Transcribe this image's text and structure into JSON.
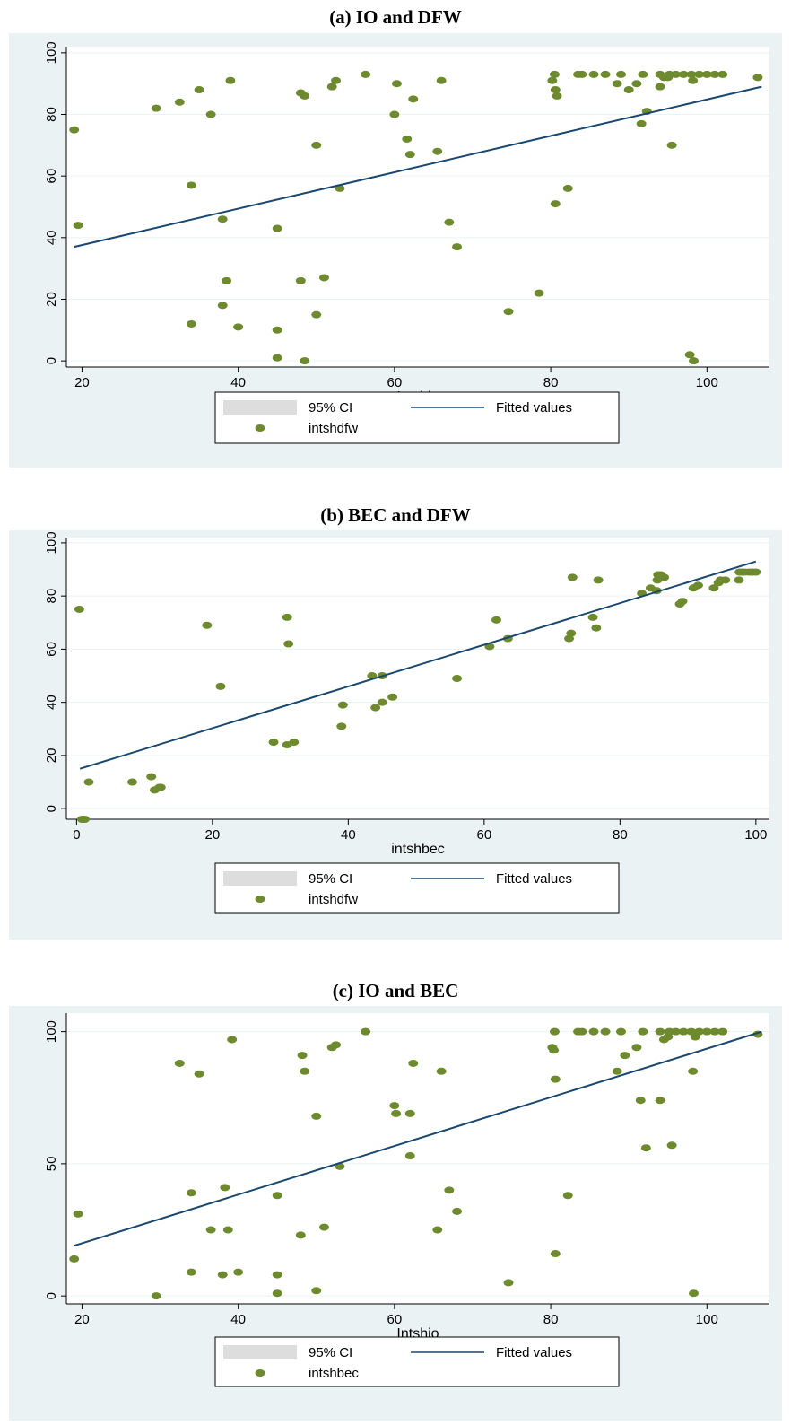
{
  "colors": {
    "outer_bg": "#eaf2f3",
    "plot_bg": "#ffffff",
    "grid": "#eaf2f3",
    "fit_line": "#1a476f",
    "marker": "#6e8a2e",
    "ci_fill": "#dddddd"
  },
  "chart_data": [
    {
      "type": "scatter",
      "title": "(a) IO and DFW",
      "xlabel": "Intshio",
      "ylabel": "",
      "xlim": [
        18,
        108
      ],
      "ylim": [
        -2,
        102
      ],
      "xticks": [
        20,
        40,
        60,
        80,
        100
      ],
      "yticks": [
        0,
        20,
        40,
        60,
        80,
        100
      ],
      "grid": true,
      "legend": {
        "placement": "bottom",
        "entries": [
          "95% CI",
          "Fitted values",
          "intshdfw"
        ]
      },
      "fit": {
        "x": [
          19,
          107
        ],
        "y": [
          37,
          89
        ]
      },
      "series": [
        {
          "name": "intshdfw",
          "points": [
            [
              19,
              75
            ],
            [
              19.5,
              44
            ],
            [
              29.5,
              82
            ],
            [
              32.5,
              84
            ],
            [
              35,
              88
            ],
            [
              36.5,
              80
            ],
            [
              34,
              57
            ],
            [
              34,
              12
            ],
            [
              38,
              46
            ],
            [
              38.5,
              26
            ],
            [
              38,
              18
            ],
            [
              39,
              91
            ],
            [
              40,
              11
            ],
            [
              45,
              43
            ],
            [
              45,
              10
            ],
            [
              45,
              1
            ],
            [
              48,
              87
            ],
            [
              48.5,
              86
            ],
            [
              48,
              26
            ],
            [
              48.5,
              0
            ],
            [
              50,
              70
            ],
            [
              50,
              15
            ],
            [
              51,
              27
            ],
            [
              52,
              89
            ],
            [
              52.5,
              91
            ],
            [
              53,
              56
            ],
            [
              56.3,
              93
            ],
            [
              60,
              80
            ],
            [
              60.3,
              90
            ],
            [
              61.6,
              72
            ],
            [
              62,
              67
            ],
            [
              62.4,
              85
            ],
            [
              65.5,
              68
            ],
            [
              66,
              91
            ],
            [
              67,
              45
            ],
            [
              68,
              37
            ],
            [
              74.6,
              16
            ],
            [
              78.5,
              22
            ],
            [
              80.2,
              91
            ],
            [
              80.5,
              93
            ],
            [
              80.6,
              88
            ],
            [
              80.8,
              86
            ],
            [
              80.6,
              51
            ],
            [
              82.2,
              56
            ],
            [
              83.5,
              93
            ],
            [
              84,
              93
            ],
            [
              85.5,
              93
            ],
            [
              87,
              93
            ],
            [
              88.5,
              90
            ],
            [
              89,
              93
            ],
            [
              90,
              88
            ],
            [
              91,
              90
            ],
            [
              91.6,
              77
            ],
            [
              91.8,
              93
            ],
            [
              92.3,
              81
            ],
            [
              94,
              89
            ],
            [
              94,
              93
            ],
            [
              94.5,
              92
            ],
            [
              95,
              92
            ],
            [
              95.2,
              93
            ],
            [
              95.5,
              70
            ],
            [
              96,
              93
            ],
            [
              97,
              93
            ],
            [
              97.8,
              2
            ],
            [
              98,
              93
            ],
            [
              98.2,
              91
            ],
            [
              98.3,
              0
            ],
            [
              99,
              93
            ],
            [
              100,
              93
            ],
            [
              101,
              93
            ],
            [
              102,
              93
            ],
            [
              106.5,
              92
            ]
          ]
        }
      ]
    },
    {
      "type": "scatter",
      "title": "(b) BEC and DFW",
      "xlabel": "intshbec",
      "ylabel": "",
      "xlim": [
        -1.5,
        102
      ],
      "ylim": [
        -4,
        102
      ],
      "xticks": [
        0,
        20,
        40,
        60,
        80,
        100
      ],
      "yticks": [
        0,
        20,
        40,
        60,
        80,
        100
      ],
      "grid": true,
      "legend": {
        "placement": "bottom",
        "entries": [
          "95% CI",
          "Fitted values",
          "intshdfw"
        ]
      },
      "fit": {
        "x": [
          0.5,
          100
        ],
        "y": [
          15,
          93
        ]
      },
      "series": [
        {
          "name": "intshdfw",
          "points": [
            [
              0.4,
              75
            ],
            [
              0.8,
              -4
            ],
            [
              1.2,
              -4
            ],
            [
              1.8,
              10
            ],
            [
              8.2,
              10
            ],
            [
              11,
              12
            ],
            [
              11.5,
              7
            ],
            [
              12.2,
              8
            ],
            [
              12.4,
              8
            ],
            [
              19.2,
              69
            ],
            [
              21.2,
              46
            ],
            [
              29,
              25
            ],
            [
              31,
              24
            ],
            [
              31,
              72
            ],
            [
              31.2,
              62
            ],
            [
              32,
              25
            ],
            [
              39,
              31
            ],
            [
              39.2,
              39
            ],
            [
              43.5,
              50
            ],
            [
              44,
              38
            ],
            [
              45,
              40
            ],
            [
              45,
              50
            ],
            [
              46.5,
              42
            ],
            [
              56,
              49
            ],
            [
              60.8,
              61
            ],
            [
              61.8,
              71
            ],
            [
              63.5,
              64
            ],
            [
              72.5,
              64
            ],
            [
              72.8,
              66
            ],
            [
              73,
              87
            ],
            [
              76,
              72
            ],
            [
              76.5,
              68
            ],
            [
              76.8,
              86
            ],
            [
              83.2,
              81
            ],
            [
              84.5,
              83
            ],
            [
              85.4,
              82
            ],
            [
              85.5,
              86
            ],
            [
              85.6,
              88
            ],
            [
              86,
              88
            ],
            [
              86.5,
              87
            ],
            [
              88.8,
              77
            ],
            [
              89.2,
              78
            ],
            [
              90.8,
              83
            ],
            [
              91.5,
              84
            ],
            [
              93.8,
              83
            ],
            [
              94.5,
              85
            ],
            [
              94.8,
              86
            ],
            [
              95.5,
              86
            ],
            [
              97.5,
              86
            ],
            [
              97.6,
              89
            ],
            [
              98,
              89
            ],
            [
              98.3,
              89
            ],
            [
              99,
              89
            ],
            [
              99.5,
              89
            ],
            [
              100,
              89
            ]
          ]
        }
      ]
    },
    {
      "type": "scatter",
      "title": "(c) IO and BEC",
      "xlabel": "Intshio",
      "ylabel": "",
      "xlim": [
        18,
        108
      ],
      "ylim": [
        -3,
        107
      ],
      "xticks": [
        20,
        40,
        60,
        80,
        100
      ],
      "yticks": [
        0,
        50,
        100
      ],
      "grid": true,
      "legend": {
        "placement": "bottom",
        "entries": [
          "95% CI",
          "Fitted values",
          "intshbec"
        ]
      },
      "fit": {
        "x": [
          19,
          107
        ],
        "y": [
          19,
          100
        ]
      },
      "series": [
        {
          "name": "intshbec",
          "points": [
            [
              19,
              14
            ],
            [
              19.5,
              31
            ],
            [
              29.5,
              0
            ],
            [
              32.5,
              88
            ],
            [
              34,
              9
            ],
            [
              34,
              39
            ],
            [
              35,
              84
            ],
            [
              36.5,
              25
            ],
            [
              38,
              8
            ],
            [
              38.3,
              41
            ],
            [
              38.7,
              25
            ],
            [
              39.2,
              97
            ],
            [
              40,
              9
            ],
            [
              45,
              38
            ],
            [
              45,
              8
            ],
            [
              45,
              1
            ],
            [
              48,
              23
            ],
            [
              48.2,
              91
            ],
            [
              48.5,
              85
            ],
            [
              50,
              68
            ],
            [
              50,
              2
            ],
            [
              51,
              26
            ],
            [
              52,
              94
            ],
            [
              52.5,
              95
            ],
            [
              53,
              49
            ],
            [
              56.3,
              100
            ],
            [
              60,
              72
            ],
            [
              60.2,
              69
            ],
            [
              62,
              69
            ],
            [
              62,
              53
            ],
            [
              62.4,
              88
            ],
            [
              65.5,
              25
            ],
            [
              66,
              85
            ],
            [
              67,
              40
            ],
            [
              68,
              32
            ],
            [
              74.6,
              5
            ],
            [
              80.2,
              94
            ],
            [
              80.4,
              93
            ],
            [
              80.5,
              100
            ],
            [
              80.6,
              82
            ],
            [
              80.6,
              16
            ],
            [
              82.2,
              38
            ],
            [
              83.5,
              100
            ],
            [
              84,
              100
            ],
            [
              85.5,
              100
            ],
            [
              87,
              100
            ],
            [
              88.5,
              85
            ],
            [
              89,
              100
            ],
            [
              89.5,
              91
            ],
            [
              91,
              94
            ],
            [
              91.5,
              74
            ],
            [
              91.8,
              100
            ],
            [
              92.2,
              56
            ],
            [
              94,
              100
            ],
            [
              94,
              74
            ],
            [
              94.5,
              97
            ],
            [
              95,
              98
            ],
            [
              95.2,
              100
            ],
            [
              95.5,
              57
            ],
            [
              96,
              100
            ],
            [
              97,
              100
            ],
            [
              98,
              100
            ],
            [
              98.2,
              85
            ],
            [
              98.3,
              1
            ],
            [
              98.5,
              98
            ],
            [
              99,
              100
            ],
            [
              100,
              100
            ],
            [
              101,
              100
            ],
            [
              102,
              100
            ],
            [
              106.5,
              99
            ]
          ]
        }
      ]
    }
  ]
}
